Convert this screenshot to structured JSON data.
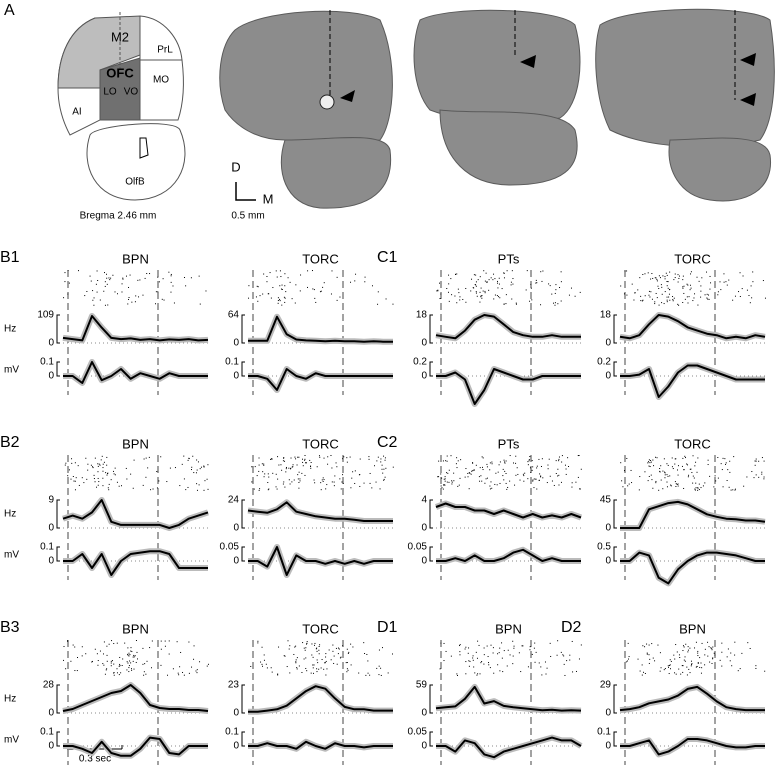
{
  "panel_a": {
    "label": "A",
    "regions": {
      "m2": "M2",
      "prl": "PrL",
      "ofc": "OFC",
      "lo": "LO",
      "vo": "VO",
      "mo": "MO",
      "ai": "AI",
      "olfb": "OlfB"
    },
    "bregma": "Bregma 2.46 mm",
    "axis_d": "D",
    "axis_m": "M",
    "scale": "0.5 mm"
  },
  "rows": [
    {
      "hz_unit": "Hz",
      "mv_unit": "mV",
      "panels": [
        {
          "label": "B1",
          "title": "BPN",
          "hz_ticks": [
            0,
            109
          ],
          "mv_ticks": [
            0,
            0.1
          ],
          "hz": [
            20,
            15,
            10,
            105,
            60,
            20,
            15,
            18,
            12,
            15,
            10,
            14,
            12,
            15,
            10,
            12
          ],
          "mv": [
            0,
            0,
            -0.05,
            0.1,
            -0.03,
            0,
            0.05,
            -0.02,
            0.02,
            0,
            -0.02,
            0.02,
            0,
            0,
            0,
            0
          ]
        },
        {
          "title": "TORC",
          "hz_ticks": [
            0,
            64
          ],
          "mv_ticks": [
            0,
            0.1
          ],
          "hz": [
            5,
            5,
            5,
            60,
            20,
            8,
            6,
            5,
            4,
            5,
            4,
            4,
            3,
            4,
            3,
            3
          ],
          "mv": [
            0,
            0,
            -0.02,
            -0.1,
            0.05,
            0,
            -0.02,
            0.02,
            0,
            0,
            0,
            0,
            0,
            0,
            0,
            0
          ]
        },
        {
          "label": "C1",
          "title": "PTs",
          "hz_ticks": [
            0,
            18
          ],
          "mv_ticks": [
            0,
            0.2
          ],
          "hz": [
            5,
            4,
            3,
            8,
            15,
            18,
            17,
            12,
            7,
            5,
            4,
            4,
            5,
            4,
            4,
            4
          ],
          "mv": [
            0,
            0,
            0.05,
            -0.05,
            -0.4,
            -0.2,
            0.1,
            0.05,
            0,
            -0.05,
            -0.05,
            0,
            0,
            0,
            0,
            0
          ]
        },
        {
          "title": "TORC",
          "hz_ticks": [
            0,
            18
          ],
          "mv_ticks": [
            0,
            0.2
          ],
          "hz": [
            4,
            3,
            5,
            12,
            18,
            17,
            14,
            10,
            8,
            6,
            5,
            3,
            4,
            3,
            5,
            4
          ],
          "mv": [
            0,
            0,
            0.02,
            0.1,
            -0.3,
            -0.15,
            0.05,
            0.15,
            0.15,
            0.1,
            0.05,
            0,
            -0.05,
            -0.05,
            -0.05,
            -0.05
          ]
        }
      ]
    },
    {
      "hz_unit": "Hz",
      "mv_unit": "mV",
      "panels": [
        {
          "label": "B2",
          "title": "BPN",
          "hz_ticks": [
            0,
            9
          ],
          "mv_ticks": [
            0,
            0.1
          ],
          "hz": [
            3,
            4,
            3,
            5,
            9,
            2,
            1,
            1,
            1,
            1,
            1,
            0,
            1,
            3,
            4,
            5
          ],
          "mv": [
            0,
            0,
            0.05,
            -0.05,
            0.05,
            -0.1,
            0,
            0.05,
            0.06,
            0.07,
            0.07,
            0.05,
            -0.05,
            -0.05,
            -0.05,
            -0.05
          ]
        },
        {
          "title": "TORC",
          "hz_ticks": [
            0,
            24
          ],
          "mv_ticks": [
            0,
            0.05
          ],
          "hz": [
            15,
            14,
            13,
            16,
            22,
            14,
            12,
            10,
            9,
            8,
            8,
            7,
            6,
            6,
            6,
            6
          ],
          "mv": [
            0,
            0,
            -0.02,
            0.05,
            -0.05,
            0.02,
            0,
            0,
            -0.01,
            0,
            -0.01,
            0,
            -0.01,
            0,
            0,
            0
          ]
        },
        {
          "label": "C2",
          "title": "PTs",
          "hz_ticks": [
            0,
            4
          ],
          "mv_ticks": [
            0,
            0.05
          ],
          "hz": [
            3,
            3.5,
            3,
            3,
            2.5,
            2.5,
            2,
            2.5,
            2,
            1.5,
            2,
            1.5,
            1.8,
            1.5,
            2,
            1.5
          ],
          "mv": [
            0,
            0,
            0.01,
            0,
            0.02,
            0,
            0,
            0.01,
            0.03,
            0.04,
            0.02,
            0,
            0.01,
            0,
            0,
            0
          ]
        },
        {
          "title": "TORC",
          "hz_ticks": [
            0,
            45
          ],
          "mv_ticks": [
            0,
            0.5
          ],
          "hz": [
            0,
            0,
            0,
            30,
            35,
            40,
            42,
            38,
            30,
            22,
            18,
            15,
            14,
            12,
            12,
            10
          ],
          "mv": [
            0,
            0,
            0.3,
            0.2,
            -0.6,
            -0.8,
            -0.3,
            0,
            0.2,
            0.3,
            0.3,
            0.25,
            0.2,
            0.1,
            0,
            0
          ]
        }
      ]
    },
    {
      "hz_unit": "Hz",
      "mv_unit": "mV",
      "panels": [
        {
          "label": "B3",
          "title": "BPN",
          "hz_ticks": [
            0,
            28
          ],
          "mv_ticks": [
            0,
            0.1
          ],
          "hz": [
            2,
            4,
            8,
            12,
            16,
            20,
            22,
            28,
            20,
            8,
            5,
            4,
            4,
            3,
            3,
            2
          ],
          "mv": [
            0,
            0,
            -0.02,
            -0.05,
            0.03,
            -0.05,
            -0.07,
            -0.07,
            -0.02,
            0.06,
            0.05,
            -0.05,
            -0.06,
            0,
            0,
            0
          ]
        },
        {
          "title": "TORC",
          "hz_ticks": [
            0,
            23
          ],
          "mv_ticks": [
            0,
            0.1
          ],
          "hz": [
            1,
            1,
            2,
            3,
            6,
            12,
            18,
            22,
            20,
            12,
            5,
            3,
            3,
            2,
            2,
            2
          ],
          "mv": [
            0,
            0,
            0.02,
            0,
            0,
            -0.02,
            0.03,
            0,
            -0.02,
            0.02,
            0,
            0,
            -0.01,
            0,
            0,
            0
          ]
        },
        {
          "label": "D1",
          "title": "BPN",
          "hz_ticks": [
            0,
            59
          ],
          "mv_ticks": [
            0,
            0.05
          ],
          "hz": [
            10,
            12,
            14,
            30,
            55,
            20,
            25,
            15,
            12,
            10,
            8,
            6,
            7,
            5,
            6,
            5
          ],
          "mv": [
            0,
            0,
            -0.02,
            0.02,
            0.01,
            -0.03,
            -0.04,
            -0.02,
            -0.01,
            0,
            0.01,
            0.02,
            0.03,
            0.02,
            0.02,
            0
          ]
        },
        {
          "label": "D2",
          "title": "BPN",
          "hz_ticks": [
            0,
            29
          ],
          "mv_ticks": [
            0,
            0.1
          ],
          "hz": [
            3,
            4,
            6,
            10,
            12,
            14,
            18,
            25,
            27,
            20,
            12,
            6,
            4,
            3,
            3,
            3
          ],
          "mv": [
            0,
            0,
            0.02,
            0.04,
            -0.06,
            -0.04,
            0,
            0.05,
            0.05,
            0.04,
            0.02,
            0,
            -0.01,
            -0.01,
            0,
            0
          ]
        }
      ]
    }
  ],
  "scale_bar": "0.3 sec"
}
